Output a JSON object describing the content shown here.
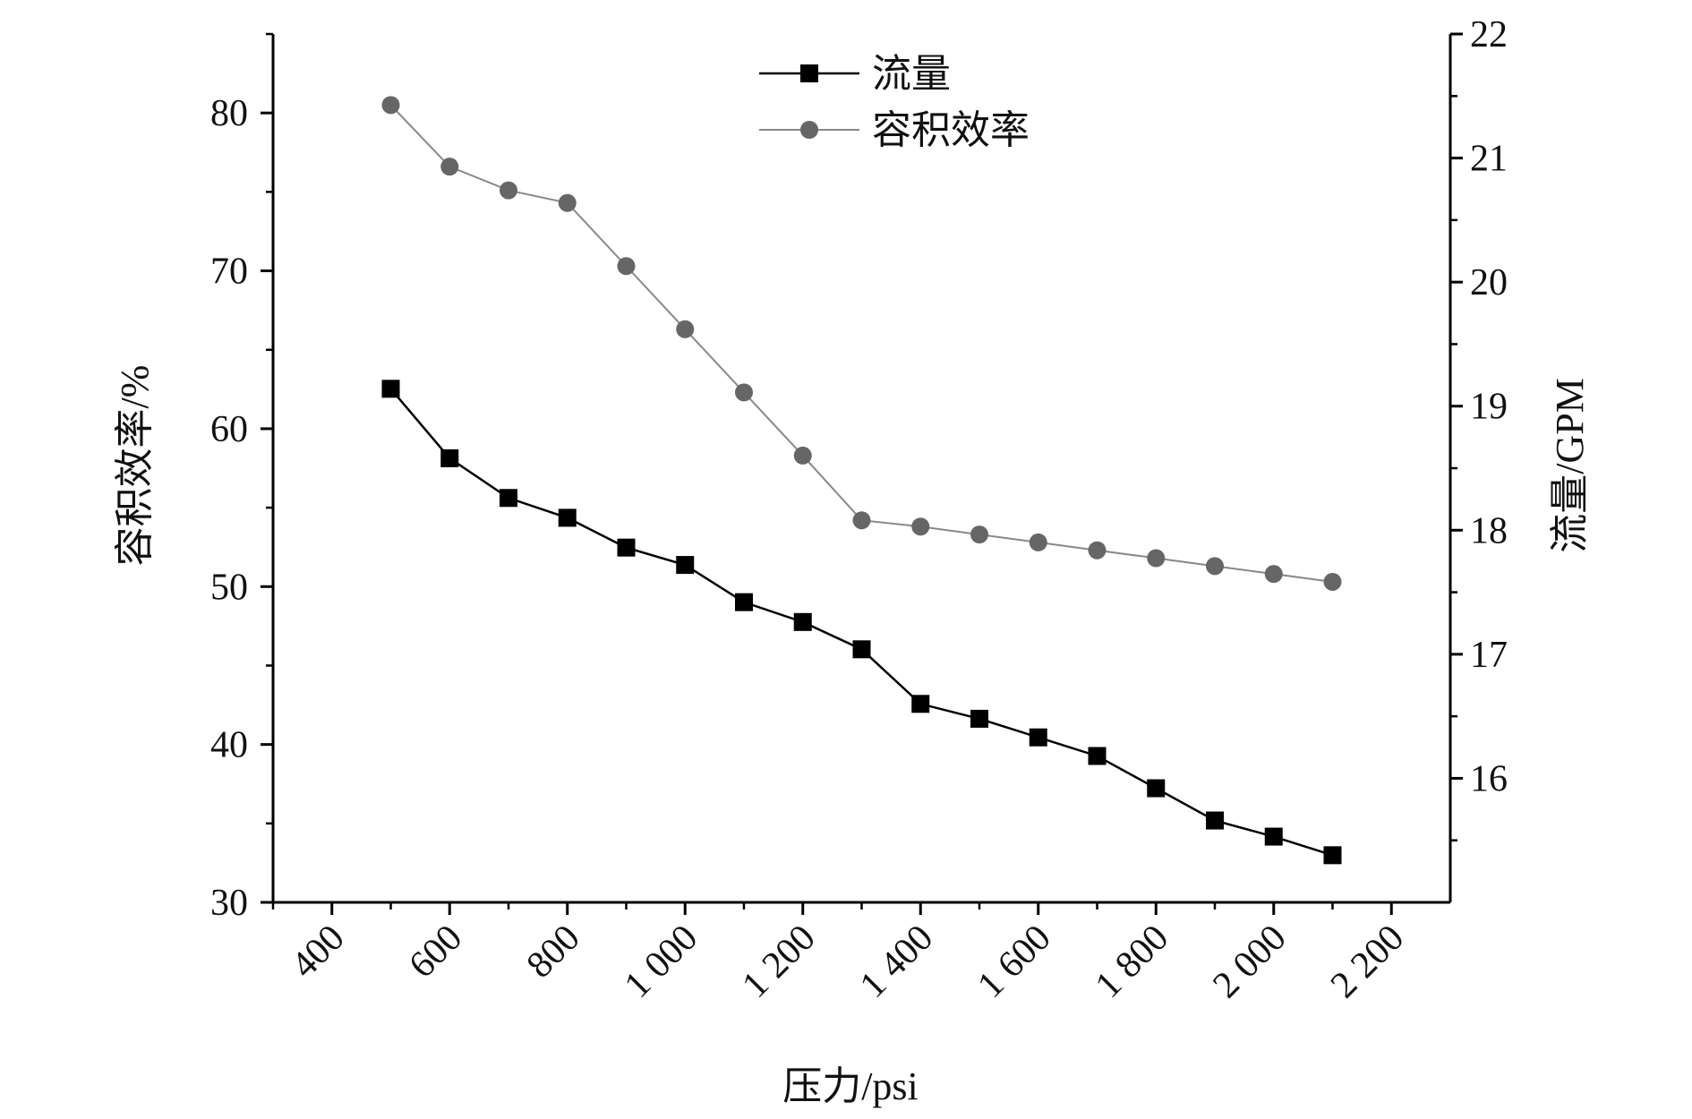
{
  "chart_data": {
    "type": "line",
    "xlabel": "压力/psi",
    "ylabel_left": "容积效率/%",
    "ylabel_right": "流量/GPM",
    "xlim": [
      300,
      2300
    ],
    "x_ticks": [
      400,
      600,
      800,
      1000,
      1200,
      1400,
      1600,
      1800,
      2000,
      2200
    ],
    "x_tick_labels": [
      "400",
      "600",
      "800",
      "1 000",
      "1 200",
      "1 400",
      "1 600",
      "1 800",
      "2 000",
      "2 200"
    ],
    "ylim_left": [
      30,
      85
    ],
    "y_left_ticks": [
      30,
      40,
      50,
      60,
      70,
      80
    ],
    "ylim_right": [
      15,
      22
    ],
    "y_right_ticks": [
      16,
      17,
      18,
      19,
      20,
      21,
      22
    ],
    "legend_position": "top-center",
    "x": [
      500,
      600,
      700,
      800,
      900,
      1000,
      1100,
      1200,
      1300,
      1400,
      1500,
      1600,
      1700,
      1800,
      1900,
      2000,
      2100
    ],
    "series": [
      {
        "name": "流量",
        "axis": "right",
        "marker": "square",
        "color": "#000000",
        "values": [
          19.14,
          18.58,
          18.26,
          18.1,
          17.86,
          17.72,
          17.42,
          17.26,
          17.04,
          16.6,
          16.48,
          16.33,
          16.18,
          15.92,
          15.66,
          15.53,
          15.38
        ]
      },
      {
        "name": "容积效率",
        "axis": "left",
        "marker": "circle",
        "color": "#666666",
        "values": [
          80.5,
          76.6,
          75.1,
          74.3,
          70.3,
          66.3,
          62.3,
          58.3,
          54.2,
          53.8,
          53.3,
          52.8,
          52.3,
          51.8,
          51.3,
          50.8,
          50.3
        ]
      }
    ]
  }
}
